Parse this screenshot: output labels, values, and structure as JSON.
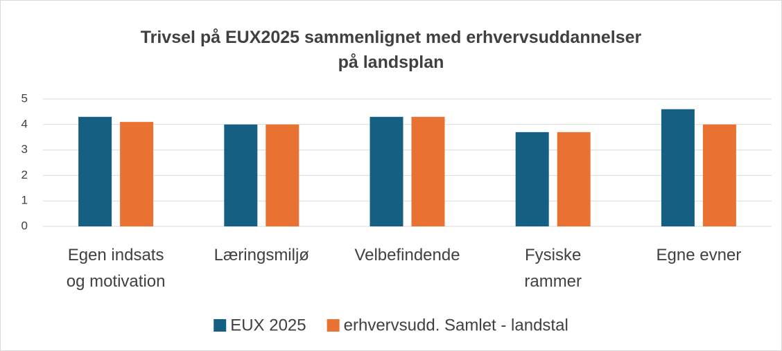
{
  "chart_data": {
    "type": "bar",
    "title": "Trivsel på EUX2025 sammenlignet med erhvervsuddannelser på landsplan",
    "categories": [
      "Egen indsats og motivation",
      "Læringsmiljø",
      "Velbefindende",
      "Fysiske rammer",
      "Egne evner"
    ],
    "series": [
      {
        "name": "EUX 2025",
        "color": "#156082",
        "values": [
          4.3,
          4.0,
          4.3,
          3.7,
          4.6
        ]
      },
      {
        "name": "erhvervsudd. Samlet - landstal",
        "color": "#e97132",
        "values": [
          4.1,
          4.0,
          4.3,
          3.7,
          4.0
        ]
      }
    ],
    "ylim": [
      0,
      5
    ],
    "yticks": [
      0,
      1,
      2,
      3,
      4,
      5
    ],
    "grid": true,
    "legend": "bottom"
  }
}
